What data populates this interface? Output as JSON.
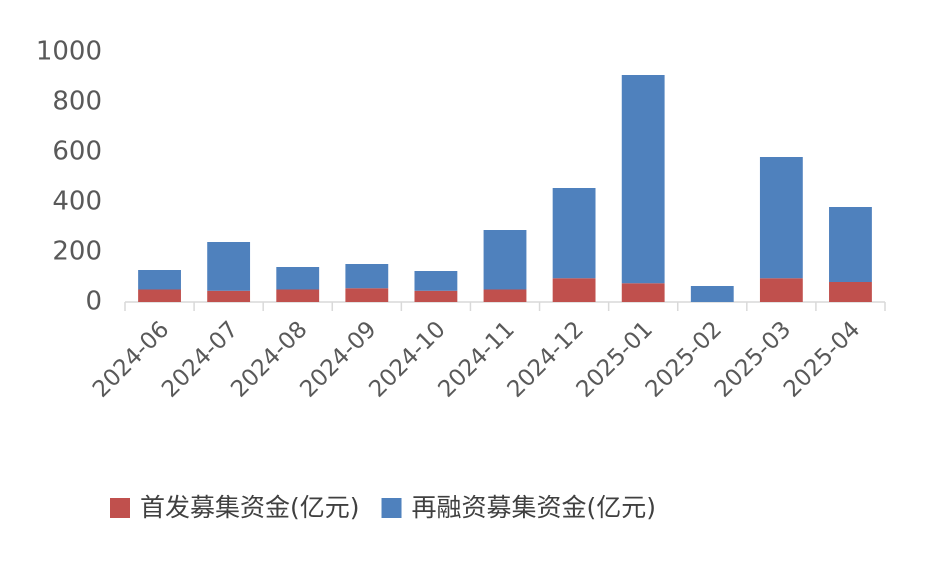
{
  "chart_data": {
    "type": "bar",
    "stacked": true,
    "categories": [
      "2024-06",
      "2024-07",
      "2024-08",
      "2024-09",
      "2024-10",
      "2024-11",
      "2024-12",
      "2025-01",
      "2025-02",
      "2025-03",
      "2025-04"
    ],
    "series": [
      {
        "name": "首发募集资金(亿元)",
        "color": "#c0504d",
        "values": [
          50,
          45,
          50,
          55,
          45,
          50,
          95,
          75,
          0,
          95,
          80
        ]
      },
      {
        "name": "再融资募集资金(亿元)",
        "color": "#4f81bd",
        "values": [
          78,
          195,
          90,
          97,
          79,
          238,
          361,
          833,
          64,
          485,
          300
        ]
      }
    ],
    "ylim": [
      0,
      1000
    ],
    "yticks": [
      0,
      200,
      400,
      600,
      800,
      1000
    ],
    "grid": false
  }
}
